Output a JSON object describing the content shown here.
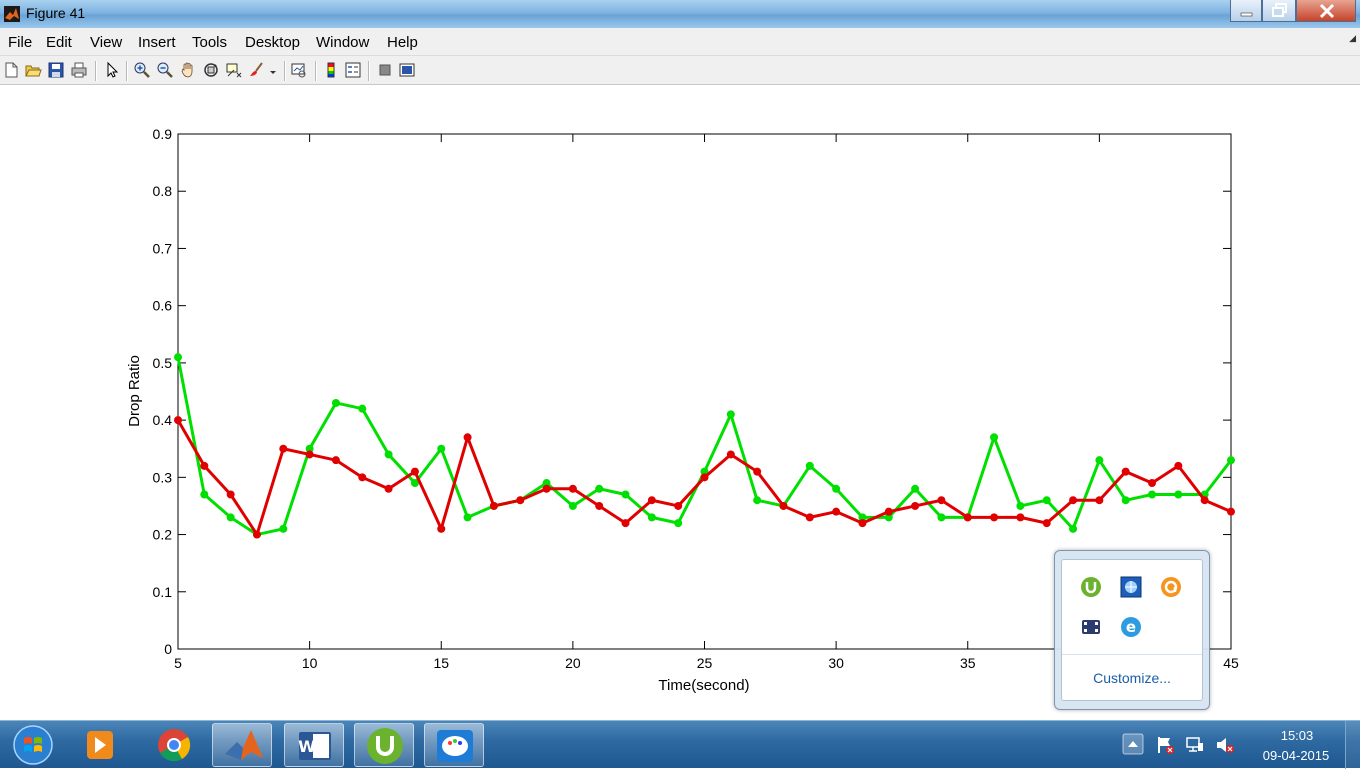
{
  "window": {
    "title": "Figure 41"
  },
  "menu": {
    "items": [
      "File",
      "Edit",
      "View",
      "Insert",
      "Tools",
      "Desktop",
      "Window",
      "Help"
    ]
  },
  "toolbar": {
    "icons": [
      "new-figure-icon",
      "open-file-icon",
      "save-figure-icon",
      "print-figure-icon",
      "edit-plot-icon",
      "zoom-in-icon",
      "zoom-out-icon",
      "pan-icon",
      "rotate-3d-icon",
      "data-cursor-icon",
      "brush-icon",
      "link-plot-icon",
      "insert-colorbar-icon",
      "insert-legend-icon",
      "hide-plot-tools-icon",
      "show-plot-tools-icon"
    ]
  },
  "chart_data": {
    "type": "line",
    "xlabel": "Time(second)",
    "ylabel": "Drop Ratio",
    "xlim": [
      5,
      45
    ],
    "ylim": [
      0,
      0.9
    ],
    "xticks": [
      5,
      10,
      15,
      20,
      25,
      30,
      35,
      40,
      45
    ],
    "xtick_labels": [
      "5",
      "10",
      "15",
      "20",
      "25",
      "30",
      "35",
      "",
      "45"
    ],
    "yticks": [
      0,
      0.1,
      0.2,
      0.3,
      0.4,
      0.5,
      0.6,
      0.7,
      0.8,
      0.9
    ],
    "ytick_labels": [
      "0",
      "0.1",
      "0.2",
      "0.3",
      "0.4",
      "0.5",
      "0.6",
      "0.7",
      "0.8",
      "0.9"
    ],
    "grid": false,
    "x": [
      5,
      6,
      7,
      8,
      9,
      10,
      11,
      12,
      13,
      14,
      15,
      16,
      17,
      18,
      19,
      20,
      21,
      22,
      23,
      24,
      25,
      26,
      27,
      28,
      29,
      30,
      31,
      32,
      33,
      34,
      35,
      36,
      37,
      38,
      39,
      40,
      41,
      42,
      43,
      44,
      45
    ],
    "series": [
      {
        "color": "#00e000",
        "values": [
          0.51,
          0.27,
          0.23,
          0.2,
          0.21,
          0.35,
          0.43,
          0.42,
          0.34,
          0.29,
          0.35,
          0.23,
          0.25,
          0.26,
          0.29,
          0.25,
          0.28,
          0.27,
          0.23,
          0.22,
          0.31,
          0.41,
          0.26,
          0.25,
          0.32,
          0.28,
          0.23,
          0.23,
          0.28,
          0.23,
          0.23,
          0.37,
          0.25,
          0.26,
          0.21,
          0.33,
          0.26,
          0.27,
          0.27,
          0.27,
          0.33
        ]
      },
      {
        "color": "#e00000",
        "values": [
          0.4,
          0.32,
          0.27,
          0.2,
          0.35,
          0.34,
          0.33,
          0.3,
          0.28,
          0.31,
          0.21,
          0.37,
          0.25,
          0.26,
          0.28,
          0.28,
          0.25,
          0.22,
          0.26,
          0.25,
          0.3,
          0.34,
          0.31,
          0.25,
          0.23,
          0.24,
          0.22,
          0.24,
          0.25,
          0.26,
          0.23,
          0.23,
          0.23,
          0.22,
          0.26,
          0.26,
          0.31,
          0.29,
          0.32,
          0.26,
          0.24
        ]
      }
    ]
  },
  "tray_popup": {
    "customize_label": "Customize...",
    "icons": [
      "utorrent-icon",
      "network-manager-icon",
      "avast-icon",
      "video-app-icon",
      "internet-explorer-icon"
    ]
  },
  "taskbar": {
    "apps": [
      "windows-start-icon",
      "media-player-icon",
      "chrome-icon",
      "matlab-icon",
      "word-icon",
      "utorrent-icon",
      "paint-app-icon"
    ],
    "time": "15:03",
    "date": "09-04-2015"
  }
}
